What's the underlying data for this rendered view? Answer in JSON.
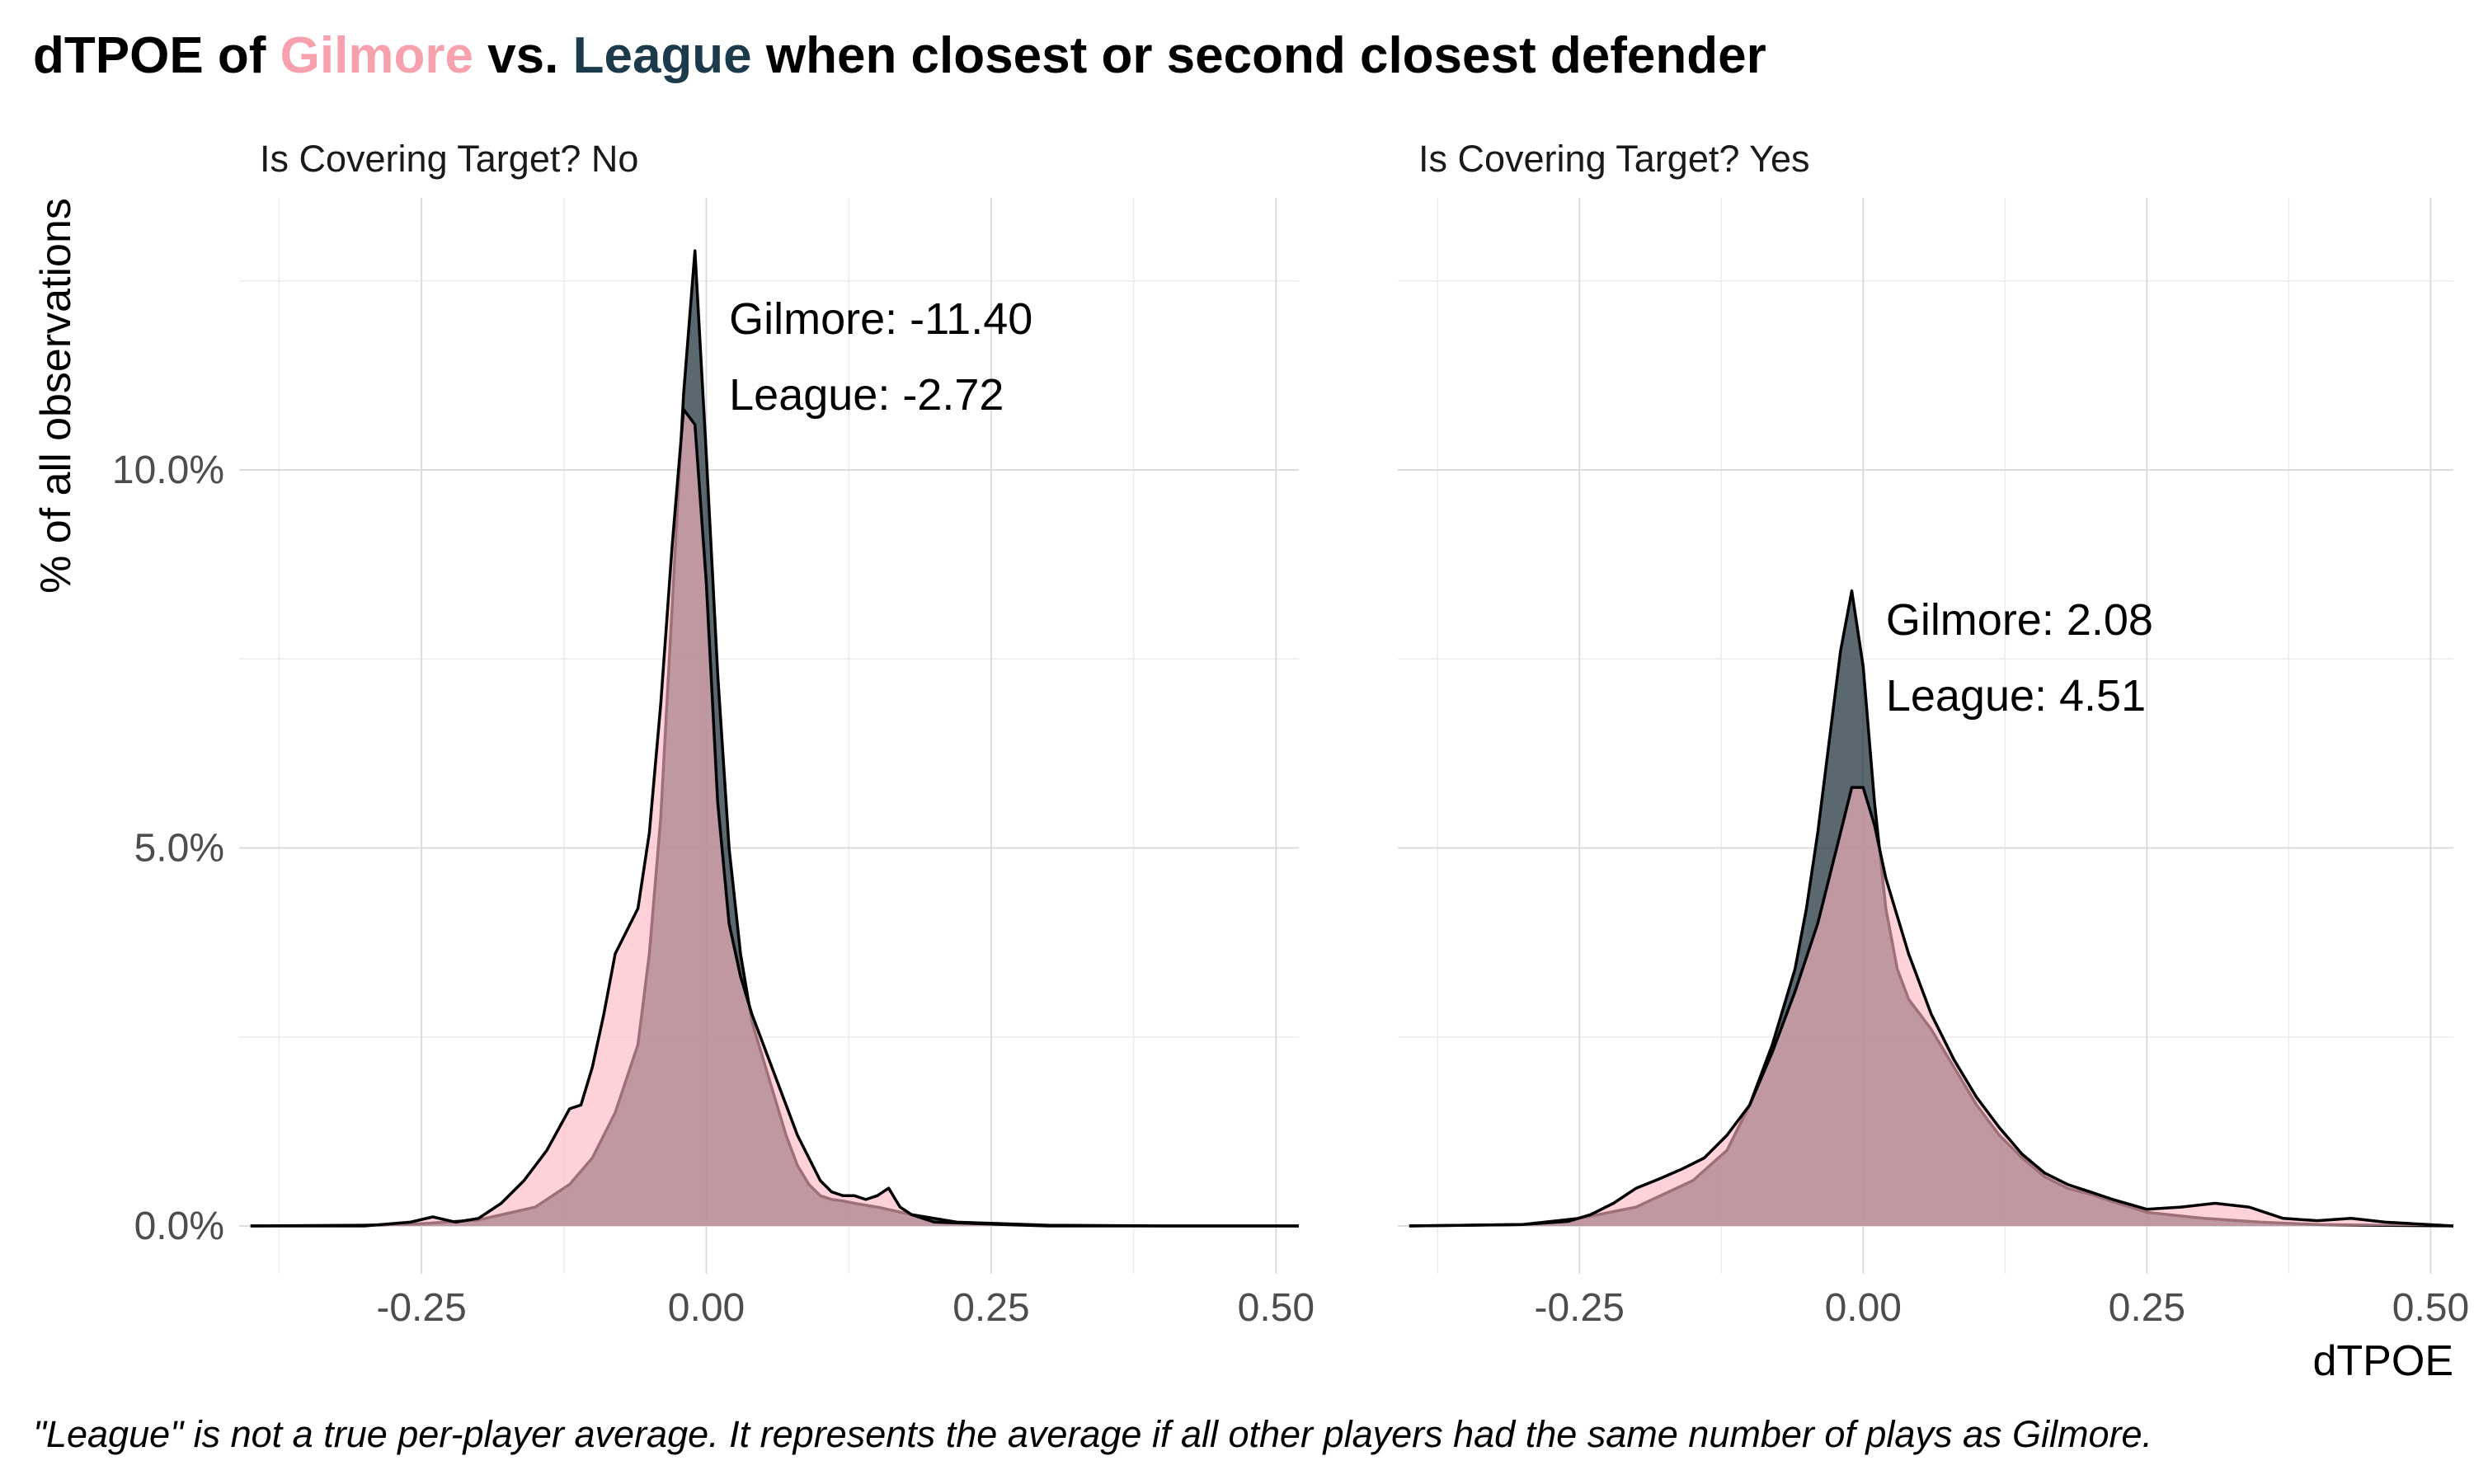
{
  "title": {
    "prefix": "dTPOE of ",
    "gilmore": "Gilmore",
    "middle": " vs. ",
    "league": "League",
    "suffix": " when closest or second closest defender"
  },
  "caption": "\"League\" is not a true per-player average. It represents the average if all other players had the same number of plays as Gilmore.",
  "colors": {
    "gilmore": "#f7a1ae",
    "league": "#1b3a4b",
    "gilmore_fill": "#ffb6c1",
    "league_fill": "#2d3e48"
  },
  "chart_data": {
    "type": "area",
    "xlabel": "dTPOE",
    "ylabel": "% of all observations",
    "xlim": [
      -0.41,
      0.52
    ],
    "ylim": [
      0,
      13
    ],
    "x_ticks": [
      -0.25,
      0.0,
      0.25,
      0.5
    ],
    "x_tick_labels": [
      "-0.25",
      "0.00",
      "0.25",
      "0.50"
    ],
    "y_ticks": [
      0,
      5,
      10
    ],
    "y_tick_labels": [
      "0.0%",
      "5.0%",
      "10.0%"
    ],
    "grid": true,
    "panels": [
      {
        "strip": "Is Covering Target? No",
        "annotations": [
          "Gilmore: -11.40",
          "League: -2.72"
        ],
        "annotation_x": 0.02,
        "series": [
          {
            "name": "League",
            "x": [
              -0.4,
              -0.3,
              -0.25,
              -0.2,
              -0.15,
              -0.12,
              -0.1,
              -0.08,
              -0.06,
              -0.05,
              -0.04,
              -0.03,
              -0.02,
              -0.01,
              0.0,
              0.01,
              0.02,
              0.03,
              0.04,
              0.05,
              0.06,
              0.07,
              0.08,
              0.09,
              0.1,
              0.11,
              0.12,
              0.13,
              0.15,
              0.18,
              0.22,
              0.3,
              0.4,
              0.52
            ],
            "y": [
              0,
              0.01,
              0.03,
              0.08,
              0.25,
              0.55,
              0.9,
              1.5,
              2.4,
              3.6,
              5.4,
              8.2,
              11.0,
              12.9,
              10.2,
              7.3,
              5.0,
              3.6,
              2.7,
              2.2,
              1.7,
              1.2,
              0.8,
              0.55,
              0.4,
              0.35,
              0.33,
              0.3,
              0.25,
              0.15,
              0.05,
              0.01,
              0,
              0
            ]
          },
          {
            "name": "Gilmore",
            "x": [
              -0.4,
              -0.3,
              -0.26,
              -0.24,
              -0.22,
              -0.2,
              -0.18,
              -0.16,
              -0.14,
              -0.12,
              -0.11,
              -0.1,
              -0.09,
              -0.08,
              -0.07,
              -0.06,
              -0.05,
              -0.04,
              -0.03,
              -0.02,
              -0.01,
              0.0,
              0.01,
              0.02,
              0.03,
              0.04,
              0.05,
              0.06,
              0.07,
              0.08,
              0.09,
              0.1,
              0.11,
              0.12,
              0.13,
              0.14,
              0.15,
              0.16,
              0.17,
              0.18,
              0.2,
              0.22,
              0.26,
              0.3,
              0.4,
              0.52
            ],
            "y": [
              0,
              0.0,
              0.05,
              0.12,
              0.05,
              0.1,
              0.3,
              0.6,
              1.0,
              1.55,
              1.6,
              2.1,
              2.8,
              3.6,
              3.9,
              4.2,
              5.2,
              6.9,
              9.0,
              10.8,
              10.6,
              8.5,
              5.6,
              4.0,
              3.3,
              2.8,
              2.4,
              2.0,
              1.6,
              1.2,
              0.9,
              0.6,
              0.45,
              0.4,
              0.4,
              0.35,
              0.4,
              0.5,
              0.25,
              0.15,
              0.05,
              0.04,
              0.02,
              0,
              0,
              0
            ]
          }
        ]
      },
      {
        "strip": "Is Covering Target? Yes",
        "annotations": [
          "Gilmore: 2.08",
          "League: 4.51"
        ],
        "annotation_x": 0.02,
        "series": [
          {
            "name": "League",
            "x": [
              -0.4,
              -0.3,
              -0.25,
              -0.2,
              -0.15,
              -0.12,
              -0.1,
              -0.08,
              -0.06,
              -0.05,
              -0.04,
              -0.03,
              -0.02,
              -0.01,
              0.0,
              0.01,
              0.02,
              0.03,
              0.04,
              0.05,
              0.06,
              0.08,
              0.1,
              0.12,
              0.14,
              0.16,
              0.18,
              0.2,
              0.22,
              0.25,
              0.3,
              0.35,
              0.4,
              0.45,
              0.52
            ],
            "y": [
              0,
              0.02,
              0.1,
              0.25,
              0.6,
              1.0,
              1.6,
              2.4,
              3.4,
              4.2,
              5.2,
              6.4,
              7.6,
              8.4,
              7.4,
              5.6,
              4.2,
              3.4,
              3.0,
              2.8,
              2.6,
              2.1,
              1.6,
              1.2,
              0.9,
              0.65,
              0.5,
              0.42,
              0.32,
              0.18,
              0.1,
              0.05,
              0.02,
              0.01,
              0
            ]
          },
          {
            "name": "Gilmore",
            "x": [
              -0.4,
              -0.3,
              -0.26,
              -0.24,
              -0.22,
              -0.2,
              -0.18,
              -0.16,
              -0.14,
              -0.12,
              -0.1,
              -0.08,
              -0.06,
              -0.04,
              -0.02,
              -0.01,
              0.0,
              0.01,
              0.02,
              0.04,
              0.06,
              0.08,
              0.1,
              0.12,
              0.14,
              0.16,
              0.18,
              0.2,
              0.22,
              0.25,
              0.28,
              0.31,
              0.34,
              0.37,
              0.4,
              0.43,
              0.46,
              0.52
            ],
            "y": [
              0,
              0.02,
              0.06,
              0.15,
              0.3,
              0.5,
              0.62,
              0.75,
              0.9,
              1.2,
              1.6,
              2.3,
              3.1,
              4.0,
              5.2,
              5.8,
              5.8,
              5.3,
              4.6,
              3.6,
              2.8,
              2.2,
              1.7,
              1.3,
              0.95,
              0.7,
              0.55,
              0.45,
              0.35,
              0.22,
              0.25,
              0.3,
              0.25,
              0.1,
              0.07,
              0.1,
              0.05,
              0
            ]
          }
        ]
      }
    ]
  }
}
